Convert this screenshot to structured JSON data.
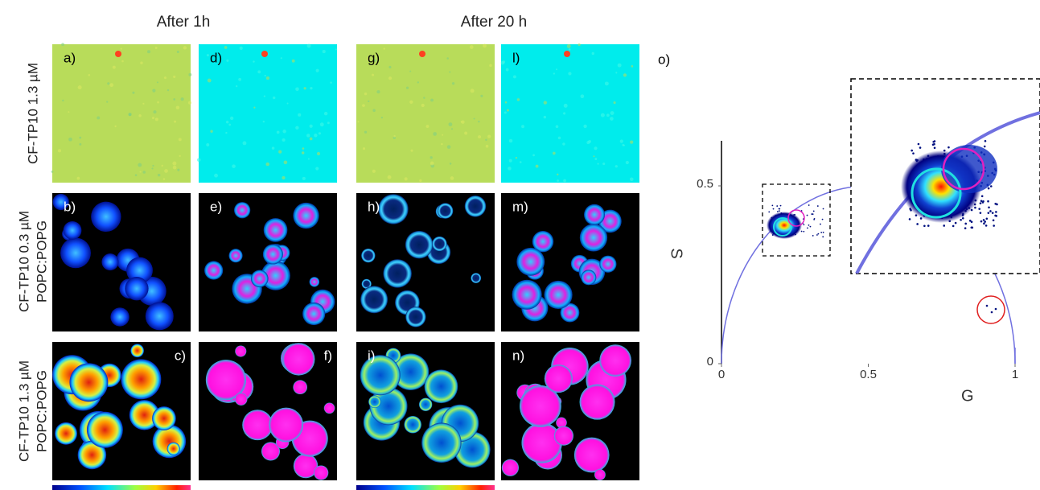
{
  "headers": [
    "After 1h",
    "After 20 h"
  ],
  "row_labels": [
    [
      "CF-TP10 1.3 µM"
    ],
    [
      "CF-TP10 0.3 µM",
      "POPC:POPG"
    ],
    [
      "CF-TP10 1.3 µM",
      "POPC:POPG"
    ]
  ],
  "panels": [
    "a)",
    "b)",
    "c)",
    "d)",
    "e)",
    "f)",
    "g)",
    "h)",
    "i)",
    "l)",
    "m)",
    "n)"
  ],
  "phasor": {
    "label": "o)",
    "xlabel": "G",
    "ylabel": "S",
    "xlim": [
      0,
      1
    ],
    "ylim": [
      0,
      0.5
    ],
    "xticks": [
      0,
      0.5,
      1
    ],
    "yticks": [
      0,
      0.5
    ]
  }
}
